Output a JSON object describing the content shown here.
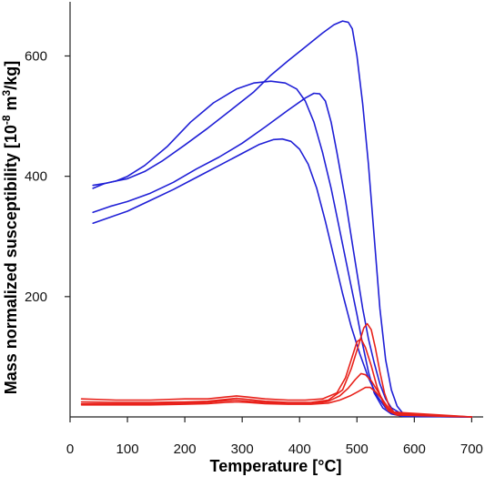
{
  "chart_data": {
    "type": "line",
    "title": "",
    "xlabel": "Temperature [°C]",
    "ylabel_main": "Mass normalized susceptibility [10",
    "ylabel_exp1": "-8",
    "ylabel_mid": " m",
    "ylabel_exp2": "3",
    "ylabel_end": "/kg]",
    "xlim": [
      0,
      720
    ],
    "ylim": [
      0,
      690
    ],
    "xticks": [
      0,
      100,
      200,
      300,
      400,
      500,
      600,
      700
    ],
    "yticks": [
      200,
      400,
      600
    ],
    "grid": false,
    "colors": {
      "heating": "#1f1fd6",
      "cooling": "#e8211a"
    },
    "series": [
      {
        "group": "blue",
        "color": "#1f1fd6",
        "points": [
          [
            40,
            380
          ],
          [
            60,
            388
          ],
          [
            80,
            392
          ],
          [
            100,
            396
          ],
          [
            130,
            408
          ],
          [
            160,
            425
          ],
          [
            200,
            452
          ],
          [
            240,
            480
          ],
          [
            280,
            510
          ],
          [
            320,
            540
          ],
          [
            350,
            568
          ],
          [
            380,
            592
          ],
          [
            410,
            615
          ],
          [
            440,
            638
          ],
          [
            460,
            652
          ],
          [
            475,
            658
          ],
          [
            485,
            656
          ],
          [
            492,
            645
          ],
          [
            500,
            600
          ],
          [
            510,
            520
          ],
          [
            520,
            420
          ],
          [
            530,
            300
          ],
          [
            540,
            180
          ],
          [
            550,
            95
          ],
          [
            560,
            45
          ],
          [
            570,
            18
          ],
          [
            580,
            6
          ],
          [
            600,
            2
          ],
          [
            700,
            0
          ]
        ]
      },
      {
        "group": "blue",
        "color": "#1f1fd6",
        "points": [
          [
            40,
            385
          ],
          [
            60,
            388
          ],
          [
            80,
            392
          ],
          [
            100,
            400
          ],
          [
            130,
            418
          ],
          [
            170,
            450
          ],
          [
            210,
            490
          ],
          [
            250,
            522
          ],
          [
            290,
            545
          ],
          [
            320,
            555
          ],
          [
            350,
            558
          ],
          [
            375,
            555
          ],
          [
            395,
            545
          ],
          [
            410,
            525
          ],
          [
            425,
            490
          ],
          [
            440,
            440
          ],
          [
            455,
            380
          ],
          [
            470,
            310
          ],
          [
            485,
            240
          ],
          [
            500,
            170
          ],
          [
            510,
            120
          ],
          [
            520,
            75
          ],
          [
            530,
            40
          ],
          [
            545,
            15
          ],
          [
            560,
            5
          ],
          [
            580,
            1
          ],
          [
            700,
            0
          ]
        ]
      },
      {
        "group": "blue",
        "color": "#1f1fd6",
        "points": [
          [
            40,
            340
          ],
          [
            70,
            350
          ],
          [
            100,
            358
          ],
          [
            140,
            372
          ],
          [
            180,
            390
          ],
          [
            220,
            412
          ],
          [
            260,
            432
          ],
          [
            300,
            455
          ],
          [
            340,
            482
          ],
          [
            380,
            510
          ],
          [
            410,
            530
          ],
          [
            425,
            538
          ],
          [
            435,
            537
          ],
          [
            445,
            525
          ],
          [
            455,
            490
          ],
          [
            465,
            440
          ],
          [
            480,
            360
          ],
          [
            495,
            270
          ],
          [
            510,
            180
          ],
          [
            520,
            130
          ],
          [
            530,
            90
          ],
          [
            540,
            55
          ],
          [
            550,
            30
          ],
          [
            560,
            15
          ],
          [
            580,
            4
          ],
          [
            600,
            1
          ],
          [
            700,
            0
          ]
        ]
      },
      {
        "group": "blue",
        "color": "#1f1fd6",
        "points": [
          [
            40,
            322
          ],
          [
            70,
            332
          ],
          [
            100,
            342
          ],
          [
            140,
            360
          ],
          [
            180,
            378
          ],
          [
            220,
            398
          ],
          [
            260,
            418
          ],
          [
            300,
            438
          ],
          [
            330,
            453
          ],
          [
            355,
            461
          ],
          [
            370,
            462
          ],
          [
            385,
            458
          ],
          [
            400,
            445
          ],
          [
            415,
            420
          ],
          [
            430,
            380
          ],
          [
            445,
            325
          ],
          [
            460,
            265
          ],
          [
            475,
            205
          ],
          [
            490,
            150
          ],
          [
            505,
            105
          ],
          [
            520,
            65
          ],
          [
            535,
            35
          ],
          [
            550,
            15
          ],
          [
            565,
            5
          ],
          [
            580,
            1
          ],
          [
            700,
            0
          ]
        ]
      },
      {
        "group": "red",
        "color": "#e8211a",
        "points": [
          [
            20,
            30
          ],
          [
            80,
            28
          ],
          [
            140,
            28
          ],
          [
            200,
            30
          ],
          [
            240,
            30
          ],
          [
            270,
            33
          ],
          [
            290,
            35
          ],
          [
            310,
            33
          ],
          [
            340,
            30
          ],
          [
            380,
            28
          ],
          [
            410,
            28
          ],
          [
            440,
            30
          ],
          [
            465,
            40
          ],
          [
            480,
            65
          ],
          [
            490,
            95
          ],
          [
            500,
            125
          ],
          [
            507,
            130
          ],
          [
            515,
            115
          ],
          [
            525,
            85
          ],
          [
            535,
            50
          ],
          [
            545,
            25
          ],
          [
            555,
            10
          ],
          [
            570,
            3
          ],
          [
            700,
            0
          ]
        ]
      },
      {
        "group": "red",
        "color": "#e8211a",
        "points": [
          [
            20,
            25
          ],
          [
            80,
            24
          ],
          [
            140,
            24
          ],
          [
            200,
            25
          ],
          [
            240,
            26
          ],
          [
            270,
            29
          ],
          [
            290,
            31
          ],
          [
            310,
            29
          ],
          [
            340,
            26
          ],
          [
            380,
            24
          ],
          [
            420,
            24
          ],
          [
            450,
            28
          ],
          [
            475,
            45
          ],
          [
            490,
            80
          ],
          [
            503,
            120
          ],
          [
            512,
            148
          ],
          [
            518,
            155
          ],
          [
            525,
            145
          ],
          [
            532,
            115
          ],
          [
            540,
            75
          ],
          [
            548,
            40
          ],
          [
            556,
            18
          ],
          [
            566,
            6
          ],
          [
            700,
            0
          ]
        ]
      },
      {
        "group": "red",
        "color": "#e8211a",
        "points": [
          [
            20,
            22
          ],
          [
            80,
            22
          ],
          [
            140,
            22
          ],
          [
            200,
            23
          ],
          [
            240,
            24
          ],
          [
            270,
            27
          ],
          [
            290,
            28
          ],
          [
            310,
            26
          ],
          [
            340,
            24
          ],
          [
            380,
            22
          ],
          [
            420,
            22
          ],
          [
            450,
            26
          ],
          [
            470,
            35
          ],
          [
            485,
            48
          ],
          [
            497,
            62
          ],
          [
            507,
            72
          ],
          [
            515,
            70
          ],
          [
            525,
            60
          ],
          [
            538,
            40
          ],
          [
            550,
            20
          ],
          [
            562,
            8
          ],
          [
            700,
            0
          ]
        ]
      },
      {
        "group": "red",
        "color": "#e8211a",
        "points": [
          [
            20,
            20
          ],
          [
            80,
            20
          ],
          [
            140,
            20
          ],
          [
            200,
            21
          ],
          [
            240,
            22
          ],
          [
            270,
            24
          ],
          [
            290,
            25
          ],
          [
            310,
            24
          ],
          [
            340,
            22
          ],
          [
            380,
            21
          ],
          [
            420,
            21
          ],
          [
            450,
            23
          ],
          [
            470,
            28
          ],
          [
            488,
            35
          ],
          [
            502,
            42
          ],
          [
            515,
            49
          ],
          [
            523,
            49
          ],
          [
            532,
            42
          ],
          [
            545,
            28
          ],
          [
            557,
            12
          ],
          [
            568,
            4
          ],
          [
            700,
            0
          ]
        ]
      }
    ]
  }
}
